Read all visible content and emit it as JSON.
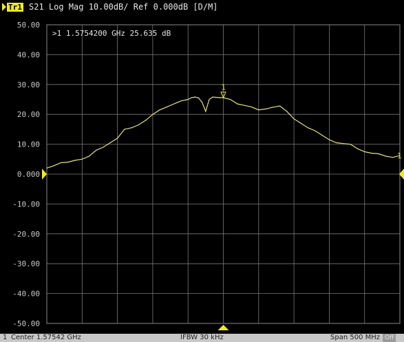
{
  "header": {
    "trace_tag": "Tr1",
    "trace_label": "S21 Log Mag 10.00dB/ Ref 0.000dB [D/M]"
  },
  "marker_readout": ">1  1.5754200 GHz  25.635 dB",
  "marker": {
    "number": "1",
    "freq_ghz": 1.57542,
    "value_db": 25.635
  },
  "status": {
    "channel": "1",
    "center": "Center 1.57542 GHz",
    "ifbw": "IFBW 30 kHz",
    "span": "Span 500 MHz",
    "off_badge": "Off"
  },
  "colors": {
    "trace": "#e8e27a",
    "accent": "#f2ea1d",
    "grid": "#7a7a7a",
    "background": "#000000",
    "tick_label": "#c8c8c8"
  },
  "chart_data": {
    "type": "line",
    "title": "",
    "xlabel": "",
    "ylabel": "",
    "ylim": [
      -50,
      50
    ],
    "xlim_ghz": [
      1.32542,
      1.82542
    ],
    "y_ticks": [
      "50.00",
      "40.00",
      "30.00",
      "20.00",
      "10.00",
      "0.000",
      "-10.00",
      "-20.00",
      "-30.00",
      "-40.00",
      "-50.00"
    ],
    "grid": true,
    "x_unit": "GHz",
    "series": [
      {
        "x": [
          1.3254,
          1.3354,
          1.3454,
          1.3554,
          1.3654,
          1.3754,
          1.3854,
          1.3954,
          1.4054,
          1.4154,
          1.4254,
          1.4354,
          1.4454,
          1.4554,
          1.4654,
          1.4754,
          1.4854,
          1.4954,
          1.5054,
          1.5154,
          1.5254,
          1.5304,
          1.5354,
          1.5404,
          1.5454,
          1.5504,
          1.5554,
          1.5604,
          1.5654,
          1.5704,
          1.5754,
          1.5854,
          1.5954,
          1.6054,
          1.6154,
          1.6254,
          1.6354,
          1.6454,
          1.6554,
          1.6654,
          1.6754,
          1.6854,
          1.6954,
          1.7054,
          1.7154,
          1.7254,
          1.7354,
          1.7454,
          1.7554,
          1.7654,
          1.7754,
          1.7854,
          1.7954,
          1.8054,
          1.8154,
          1.8254
        ],
        "y": [
          2.0,
          2.8,
          3.8,
          4.0,
          4.6,
          5.0,
          6.0,
          8.0,
          9.0,
          10.5,
          12.0,
          15.0,
          15.5,
          16.5,
          18.0,
          20.0,
          21.5,
          22.5,
          23.5,
          24.5,
          25.0,
          25.6,
          25.8,
          25.5,
          24.0,
          21.0,
          25.0,
          25.8,
          25.7,
          25.6,
          25.6,
          25.0,
          23.5,
          23.0,
          22.5,
          21.5,
          21.8,
          22.4,
          22.8,
          21.0,
          18.5,
          17.0,
          15.5,
          14.5,
          13.0,
          11.5,
          10.5,
          10.2,
          10.0,
          8.5,
          7.5,
          7.0,
          6.8,
          6.0,
          5.6,
          6.2
        ]
      }
    ]
  }
}
